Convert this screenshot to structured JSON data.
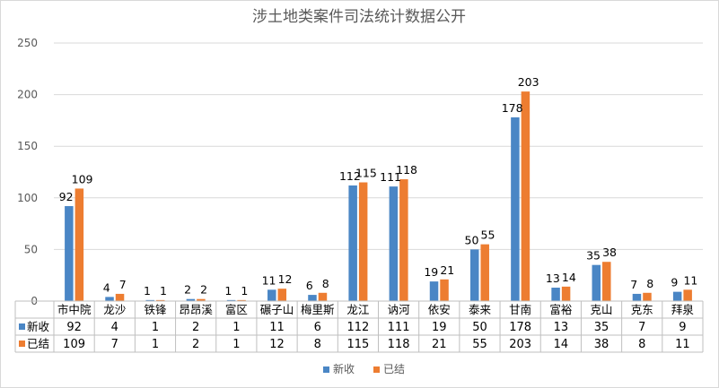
{
  "chart_data": {
    "type": "bar",
    "title": "涉土地类案件司法统计数据公开",
    "categories": [
      "市中院",
      "龙沙",
      "铁锋",
      "昂昂溪",
      "富区",
      "碾子山",
      "梅里斯",
      "龙江",
      "讷河",
      "依安",
      "泰来",
      "甘南",
      "富裕",
      "克山",
      "克东",
      "拜泉"
    ],
    "series": [
      {
        "name": "新收",
        "color": "#4a86c5",
        "values": [
          92,
          4,
          1,
          2,
          1,
          11,
          6,
          112,
          111,
          19,
          50,
          178,
          13,
          35,
          7,
          9
        ]
      },
      {
        "name": "已结",
        "color": "#ed7d31",
        "values": [
          109,
          7,
          1,
          2,
          1,
          12,
          8,
          115,
          118,
          21,
          55,
          203,
          14,
          38,
          8,
          11
        ]
      }
    ],
    "ylim": [
      0,
      250
    ],
    "yticks": [
      0,
      50,
      100,
      150,
      200,
      250
    ],
    "grid": true,
    "legend": "bottom",
    "data_table": true
  }
}
